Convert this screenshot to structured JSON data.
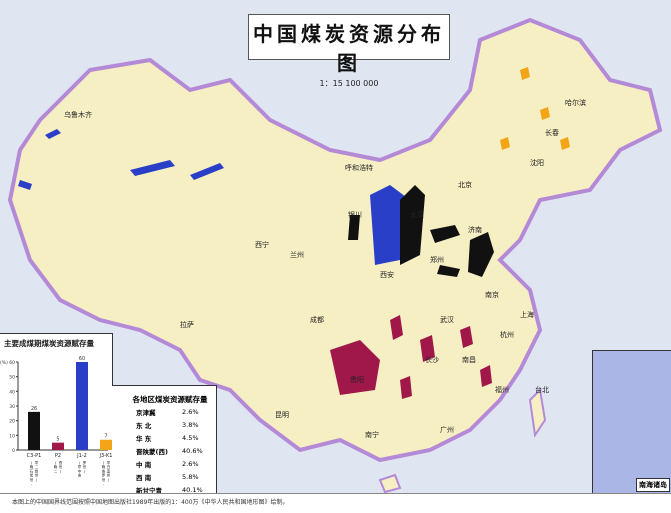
{
  "map": {
    "title": "中国煤炭资源分布图",
    "scale": "1：15 100 000",
    "colors": {
      "land": "#f6efc4",
      "border": "#b48ad6",
      "sea": "#dfe6f2",
      "c3p1": "#111111",
      "p2": "#a0174a",
      "j12": "#2a3fc8",
      "j3k1": "#f2a516"
    },
    "cities": [
      "乌鲁木齐",
      "呼和浩特",
      "北京",
      "沈阳",
      "长春",
      "哈尔滨",
      "银川",
      "兰州",
      "西宁",
      "太原",
      "济南",
      "郑州",
      "西安",
      "成都",
      "拉萨",
      "昆明",
      "贵阳",
      "南宁",
      "长沙",
      "武汉",
      "南京",
      "上海",
      "杭州",
      "福州",
      "南昌",
      "广州",
      "台北"
    ]
  },
  "chart": {
    "title": "主要成煤期煤炭资源赋存量",
    "y_unit_label": "(%) 60",
    "chart_data": {
      "type": "bar",
      "title": "主要成煤期煤炭资源赋存量",
      "ylabel": "(%)",
      "ylim": [
        0,
        60
      ],
      "yticks": [
        0,
        10,
        20,
        30,
        40,
        50,
        60
      ],
      "categories": [
        "C3-P1",
        "P2",
        "J1-2",
        "J3-K1"
      ],
      "sublabels": [
        "(晚石炭世-早二叠世)",
        "(晚二叠世)",
        "(早中侏罗世)",
        "(晚侏罗世-早白垩世)"
      ],
      "values": [
        26,
        5,
        60,
        7
      ],
      "colors": [
        "#111111",
        "#a0174a",
        "#2a3fc8",
        "#f2a516"
      ]
    }
  },
  "table": {
    "title": "各地区煤炭资源赋存量",
    "rows": [
      {
        "region": "京津冀",
        "value": "2.6%"
      },
      {
        "region": "东 北",
        "value": "3.8%"
      },
      {
        "region": "华 东",
        "value": "4.5%"
      },
      {
        "region": "晋陕蒙(西)",
        "value": "40.6%"
      },
      {
        "region": "中 南",
        "value": "2.6%"
      },
      {
        "region": "西 南",
        "value": "5.8%"
      },
      {
        "region": "新甘宁青",
        "value": "40.1%"
      }
    ]
  },
  "inset": {
    "label": "南海诸岛"
  },
  "footer": {
    "note": "本图上的中国国界线范围按照中国地图出版社1989年出版的1：400万《中华人民共和国地形图》绘制。"
  }
}
